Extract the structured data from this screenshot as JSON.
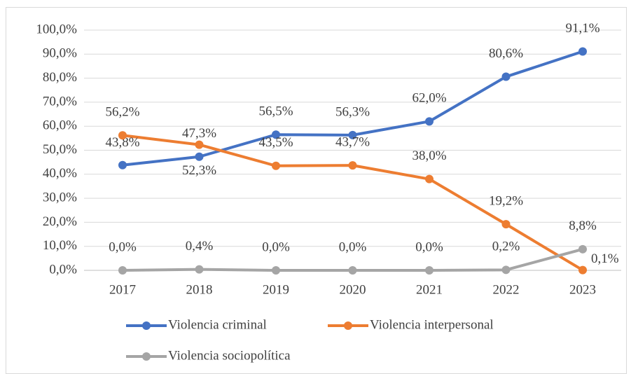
{
  "chart_data": {
    "type": "line",
    "categories": [
      "2017",
      "2018",
      "2019",
      "2020",
      "2021",
      "2022",
      "2023"
    ],
    "series": [
      {
        "name": "Violencia criminal",
        "color": "#4472c4",
        "values": [
          43.8,
          47.3,
          56.5,
          56.3,
          62.0,
          80.6,
          91.1
        ],
        "value_labels": [
          "43,8%",
          "47,3%",
          "56,5%",
          "56,3%",
          "62,0%",
          "80,6%",
          "91,1%"
        ]
      },
      {
        "name": "Violencia interpersonal",
        "color": "#ed7d31",
        "values": [
          56.2,
          52.3,
          43.5,
          43.7,
          38.0,
          19.2,
          0.1
        ],
        "value_labels": [
          "56,2%",
          "52,3%",
          "43,5%",
          "43,7%",
          "38,0%",
          "19,2%",
          "0,1%"
        ]
      },
      {
        "name": "Violencia sociopolítica",
        "color": "#a5a5a5",
        "values": [
          0.0,
          0.4,
          0.0,
          0.0,
          0.0,
          0.2,
          8.8
        ],
        "value_labels": [
          "0,0%",
          "0,4%",
          "0,0%",
          "0,0%",
          "0,0%",
          "0,2%",
          "8,8%"
        ]
      }
    ],
    "ylim": [
      0,
      100
    ],
    "yticks": [
      {
        "value": 0,
        "label": "0,0%"
      },
      {
        "value": 10,
        "label": "10,0%"
      },
      {
        "value": 20,
        "label": "20,0%"
      },
      {
        "value": 30,
        "label": "30,0%"
      },
      {
        "value": 40,
        "label": "40,0%"
      },
      {
        "value": 50,
        "label": "50,0%"
      },
      {
        "value": 60,
        "label": "60,0%"
      },
      {
        "value": 70,
        "label": "70,0%"
      },
      {
        "value": 80,
        "label": "80,0%"
      },
      {
        "value": 90,
        "label": "90,0%"
      },
      {
        "value": 100,
        "label": "100,0%"
      }
    ],
    "grid": true,
    "legend": "bottom"
  }
}
